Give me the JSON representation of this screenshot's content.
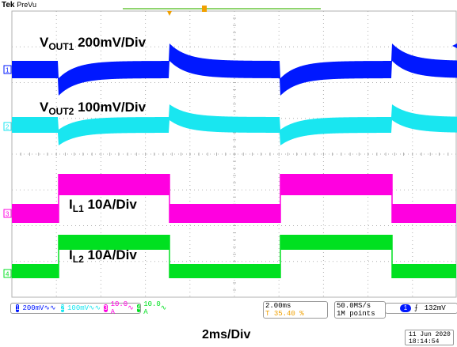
{
  "header": {
    "brand": "Tek",
    "mode": "PreVu"
  },
  "traces": [
    {
      "id": "1",
      "label_main": "V",
      "label_sub": "OUT1",
      "label_scale": "200mV/Div",
      "color": "#0018ff"
    },
    {
      "id": "2",
      "label_main": "V",
      "label_sub": "OUT2",
      "label_scale": "100mV/Div",
      "color": "#19e6f0"
    },
    {
      "id": "3",
      "label_main": "I",
      "label_sub": "L1",
      "label_scale": "10A/Div",
      "color": "#ff00e0"
    },
    {
      "id": "4",
      "label_main": "I",
      "label_sub": "L2",
      "label_scale": "10A/Div",
      "color": "#00e020"
    }
  ],
  "status": {
    "ch1_scale": "200mV",
    "ch2_scale": "100mV",
    "ch3_scale": "10.0 A",
    "ch4_scale": "10.0 A",
    "timebase": "2.00ms",
    "trigger_position": "35.40 %",
    "sample_rate": "50.0MS/s",
    "record_length": "1M points",
    "trigger_source": "1",
    "trigger_level": "132mV"
  },
  "footer": {
    "time_div": "2ms/Div",
    "date": "11 Jun  2020",
    "time": "18:14:54"
  },
  "colors": {
    "grid": "#b0b0b0",
    "ch1": "#0018ff",
    "ch2": "#19e6f0",
    "ch3": "#ff00e0",
    "ch4": "#00e020",
    "trigger": "#f0a000"
  }
}
